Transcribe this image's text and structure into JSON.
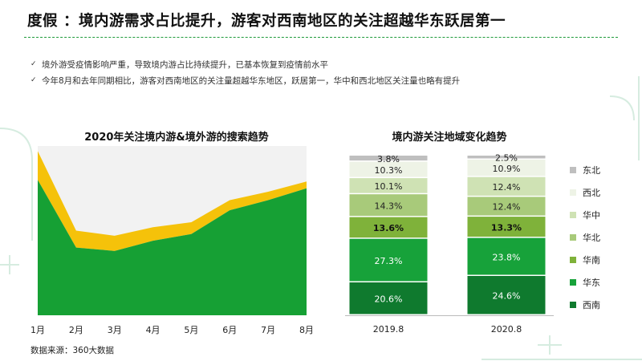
{
  "title": "度假 ：境内游需求占比提升，游客对西南地区的关注超越华东跃居第一",
  "bullets": [
    "境外游受疫情影响严重，导致境内游占比持续提升，已基本恢复到疫情前水平",
    "今年8月和去年同期相比，游客对西南地区的关注量超越华东地区，跃居第一，华中和西北地区关注量也略有提升"
  ],
  "source": "数据来源：360大数据",
  "colors": {
    "domestic": "#16a034",
    "outbound": "#f5c20a",
    "plot_bg": "#f2f2f2",
    "accent": "#1e9a3a"
  },
  "chart_data": [
    {
      "type": "area",
      "title": "2020年关注境内游&境外游的搜索趋势",
      "categories": [
        "1月",
        "2月",
        "3月",
        "4月",
        "5月",
        "6月",
        "7月",
        "8月"
      ],
      "stacked": true,
      "ylim": [
        0,
        100
      ],
      "legend_position": "top",
      "series": [
        {
          "name": "境内游",
          "values": [
            80,
            40,
            38,
            44,
            48,
            62,
            68,
            75
          ],
          "color": "#16a034"
        },
        {
          "name": "境外游",
          "values": [
            17,
            10,
            9,
            8,
            7,
            6,
            5,
            4
          ],
          "color": "#f5c20a"
        }
      ]
    },
    {
      "type": "bar",
      "stacked": true,
      "title": "境内游关注地域变化趋势",
      "categories": [
        "2019.8",
        "2020.8"
      ],
      "legend_position": "right",
      "series": [
        {
          "name": "西南",
          "values": [
            20.6,
            24.6
          ],
          "labels": [
            "20.6%",
            "24.6%"
          ],
          "color": "#0f7a2e"
        },
        {
          "name": "华东",
          "values": [
            27.3,
            23.8
          ],
          "labels": [
            "27.3%",
            "23.8%"
          ],
          "color": "#17a23a"
        },
        {
          "name": "华南",
          "values": [
            13.6,
            13.3
          ],
          "labels": [
            "13.6%",
            "13.3%"
          ],
          "color": "#7fb23a",
          "bold": true
        },
        {
          "name": "华北",
          "values": [
            14.3,
            12.4
          ],
          "labels": [
            "14.3%",
            "12.4%"
          ],
          "color": "#a8ca7a"
        },
        {
          "name": "华中",
          "values": [
            10.1,
            12.4
          ],
          "labels": [
            "10.1%",
            "12.4%"
          ],
          "color": "#cfe2b4"
        },
        {
          "name": "西北",
          "values": [
            10.3,
            10.9
          ],
          "labels": [
            "10.3%",
            "10.9%"
          ],
          "color": "#eef3e6"
        },
        {
          "name": "东北",
          "values": [
            3.8,
            2.5
          ],
          "labels": [
            "3.8%",
            "2.5%"
          ],
          "color": "#bfbfbf"
        }
      ]
    }
  ]
}
